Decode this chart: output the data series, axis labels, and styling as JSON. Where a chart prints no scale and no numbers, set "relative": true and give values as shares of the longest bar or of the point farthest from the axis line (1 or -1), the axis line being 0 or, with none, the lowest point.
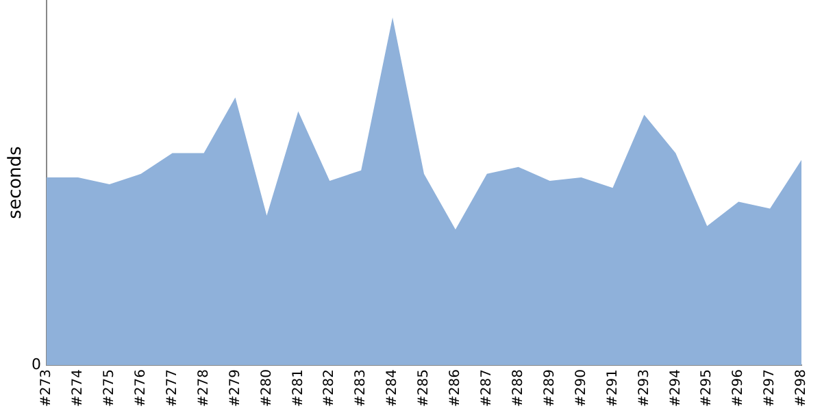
{
  "chart_data": {
    "type": "area",
    "ylabel": "seconds",
    "relative": true,
    "annotations": [
      "0"
    ],
    "grid": false,
    "legend": false,
    "marker": "none",
    "categories": [
      "#273",
      "#274",
      "#275",
      "#276",
      "#277",
      "#278",
      "#279",
      "#280",
      "#281",
      "#282",
      "#283",
      "#284",
      "#285",
      "#286",
      "#287",
      "#288",
      "#289",
      "#290",
      "#291",
      "#293",
      "#294",
      "#295",
      "#296",
      "#297",
      "#298"
    ],
    "series": [
      {
        "color": "#8fb1da",
        "values": [
          0.54,
          0.54,
          0.52,
          0.55,
          0.61,
          0.61,
          0.77,
          0.43,
          0.73,
          0.53,
          0.56,
          1,
          0.55,
          0.39,
          0.55,
          0.57,
          0.53,
          0.54,
          0.51,
          0.72,
          0.61,
          0.4,
          0.47,
          0.45,
          0.59
        ]
      }
    ]
  }
}
